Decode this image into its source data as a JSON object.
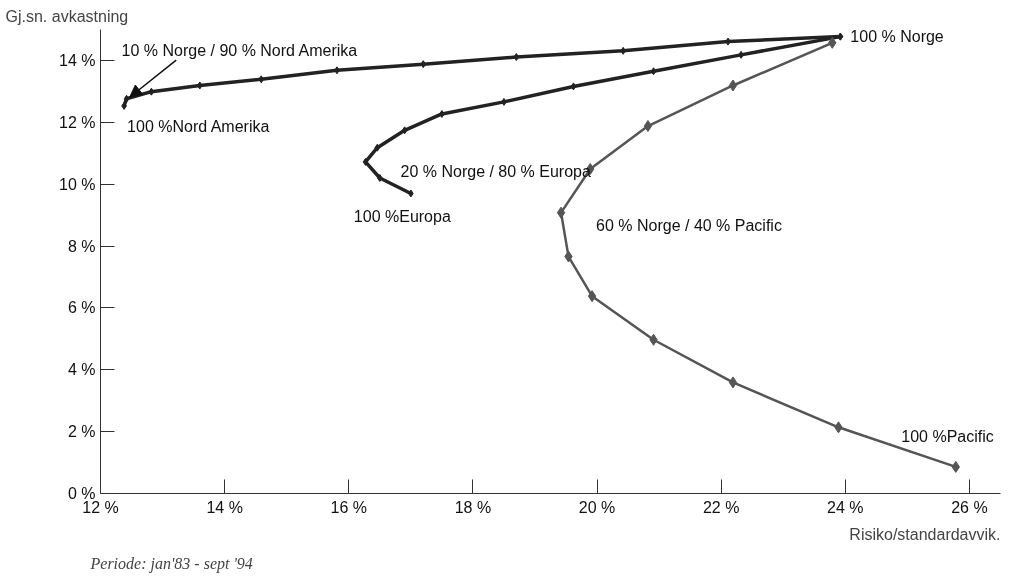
{
  "chart_data": {
    "type": "line",
    "xlabel": "Risiko/standardavvik.",
    "ylabel": "Gj.sn. avkastning",
    "xlim": [
      12,
      26.5
    ],
    "ylim": [
      0,
      15
    ],
    "xticks": [
      {
        "value": 12,
        "label": "12 %"
      },
      {
        "value": 14,
        "label": "14 %"
      },
      {
        "value": 16,
        "label": "16 %"
      },
      {
        "value": 18,
        "label": "18 %"
      },
      {
        "value": 20,
        "label": "20 %"
      },
      {
        "value": 22,
        "label": "22 %"
      },
      {
        "value": 24,
        "label": "24 %"
      },
      {
        "value": 26,
        "label": "26 %"
      }
    ],
    "yticks": [
      {
        "value": 0,
        "label": "0 %"
      },
      {
        "value": 2,
        "label": "2 %"
      },
      {
        "value": 4,
        "label": "4 %"
      },
      {
        "value": 6,
        "label": "6 %"
      },
      {
        "value": 8,
        "label": "8 %"
      },
      {
        "value": 10,
        "label": "10 %"
      },
      {
        "value": 12,
        "label": "12 %"
      },
      {
        "value": 14,
        "label": "14 %"
      }
    ],
    "grid": false,
    "marker": "diamond",
    "line_style": "solid",
    "series": [
      {
        "color": "#222222",
        "x": [
          12.38,
          12.42,
          12.82,
          13.6,
          14.59,
          15.81,
          17.2,
          18.7,
          20.42,
          22.11,
          23.92
        ],
        "values": [
          12.53,
          12.76,
          12.99,
          13.19,
          13.39,
          13.68,
          13.88,
          14.11,
          14.31,
          14.61,
          14.77
        ]
      },
      {
        "color": "#222222",
        "x": [
          17.0,
          16.5,
          16.27,
          16.46,
          16.9,
          17.5,
          18.5,
          19.62,
          20.91,
          22.32,
          23.92
        ],
        "values": [
          9.7,
          10.2,
          10.72,
          11.18,
          11.74,
          12.27,
          12.66,
          13.16,
          13.65,
          14.18,
          14.77
        ]
      },
      {
        "color": "#555555",
        "x": [
          25.78,
          23.89,
          22.19,
          20.91,
          19.92,
          19.54,
          19.42,
          19.89,
          20.82,
          22.19,
          23.79
        ],
        "values": [
          0.86,
          2.14,
          3.59,
          4.97,
          6.38,
          7.66,
          9.08,
          10.49,
          11.88,
          13.19,
          14.57
        ]
      }
    ],
    "annotations": [
      {
        "text": "10 % Norge / 90 % Nord Amerika",
        "x": 12.42,
        "y": 12.76
      },
      {
        "text": "100 % Norge",
        "x": 23.92,
        "y": 14.77
      },
      {
        "text": "100 %Nord Amerika",
        "x": 12.38,
        "y": 12.53
      },
      {
        "text": "20 % Norge / 80 % Europa",
        "x": 16.27,
        "y": 10.72
      },
      {
        "text": "100 %Europa",
        "x": 17.0,
        "y": 9.7
      },
      {
        "text": "60 % Norge / 40 % Pacific",
        "x": 19.42,
        "y": 9.08
      },
      {
        "text": "100 %Pacific",
        "x": 25.78,
        "y": 0.86
      },
      "Periode: jan'83 - sept '94"
    ]
  }
}
